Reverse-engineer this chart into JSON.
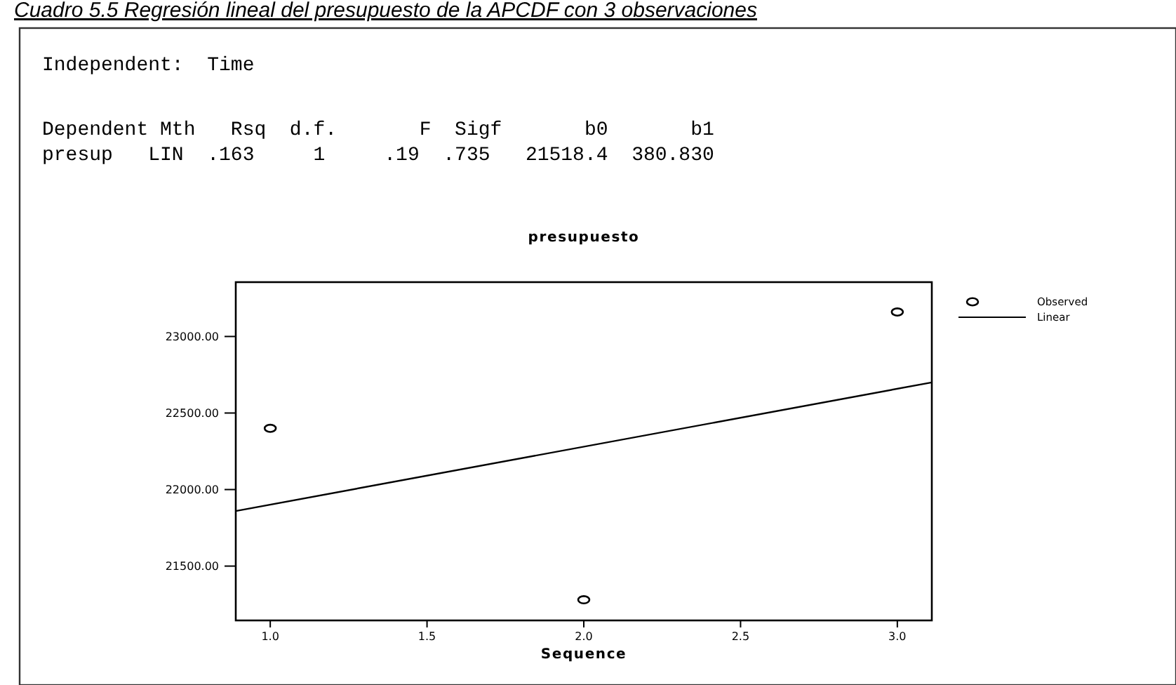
{
  "chart_data": {
    "type": "scatter",
    "title": "presupuesto",
    "subtitle": "Cuadro 5.5 Regresión lineal del presupuesto de la APCDF con 3 observaciones",
    "annotations": [
      "Independent:  Time",
      "Dependent Mth   Rsq  d.f.       F  Sigf       b0       b1",
      "presup   LIN  .163     1     .19  .735   21518.4  380.830"
    ],
    "xlabel": "Sequence",
    "xlim": [
      0.89,
      3.11
    ],
    "xticks": [
      {
        "value": 1,
        "label": "1.0"
      },
      {
        "value": 1.5,
        "label": "1.5"
      },
      {
        "value": 2,
        "label": "2.0"
      },
      {
        "value": 2.5,
        "label": "2.5"
      },
      {
        "value": 3,
        "label": "3.0"
      }
    ],
    "ylim": [
      21145,
      23355
    ],
    "yticks": [
      {
        "value": 21500,
        "label": "21500.00"
      },
      {
        "value": 22000,
        "label": "22000.00"
      },
      {
        "value": 22500,
        "label": "22500.00"
      },
      {
        "value": 23000,
        "label": "23000.00"
      }
    ],
    "grid": false,
    "legend": "right",
    "series": [
      {
        "name": "Observed",
        "color": "#000000",
        "marker": "circle",
        "x": [
          1,
          2,
          3
        ],
        "values": [
          22400,
          21280,
          23160
        ]
      },
      {
        "name": "Linear",
        "type": "line",
        "color": "#000000",
        "marker": "none",
        "line_style": "solid",
        "x": [
          0.89,
          3.11
        ],
        "values": [
          21860,
          22700
        ]
      }
    ]
  }
}
